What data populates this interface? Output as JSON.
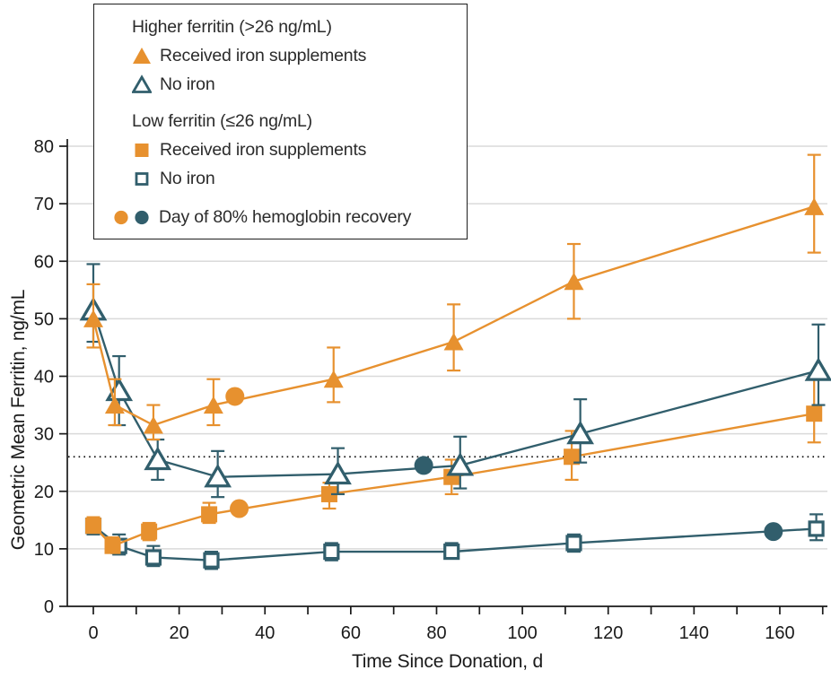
{
  "figure": {
    "xlabel": "Time Since Donation, d",
    "ylabel": "Geometric Mean Ferritin, ng/mL"
  },
  "colors": {
    "orange": "#E7912F",
    "teal": "#315E6C",
    "grid": "#DADADA",
    "axis": "#1A1A1A",
    "text": "#2B2B2B",
    "background": "#FFFFFF"
  },
  "legend": {
    "groups": [
      {
        "title": "Higher ferritin (>26 ng/mL)",
        "items": [
          {
            "marker": "triangle-filled-orange",
            "label": "Received iron supplements"
          },
          {
            "marker": "triangle-open-teal",
            "label": "No iron"
          }
        ]
      },
      {
        "title": "Low ferritin (≤26 ng/mL)",
        "items": [
          {
            "marker": "square-filled-orange",
            "label": "Received iron supplements"
          },
          {
            "marker": "square-open-teal",
            "label": "No iron"
          }
        ]
      }
    ],
    "recovery": {
      "markers": [
        "circle-orange",
        "circle-teal"
      ],
      "label": "Day of 80% hemoglobin recovery"
    }
  },
  "chart_data": {
    "type": "line",
    "title": "",
    "xlabel": "Time Since Donation, d",
    "ylabel": "Geometric Mean Ferritin, ng/mL",
    "xlim": [
      -6,
      172
    ],
    "ylim": [
      0,
      80
    ],
    "x_tick_labels": [
      0,
      20,
      40,
      60,
      80,
      100,
      120,
      140,
      160
    ],
    "x_minor_tick_step": 10,
    "x_minor_tick_max": 170,
    "y_ticks": [
      0,
      10,
      20,
      30,
      40,
      50,
      60,
      70,
      80
    ],
    "grid": "horizontal",
    "legend_position": "top-left",
    "threshold_line": {
      "y": 26,
      "style": "dotted"
    },
    "series": [
      {
        "name": "Low ferritin (≤26 ng/mL) — No iron",
        "key": "low-noiron",
        "marker": "square-open",
        "color": "teal",
        "x": [
          0,
          6,
          14,
          27.5,
          55.5,
          83.5,
          112,
          168.5
        ],
        "y": [
          14,
          10.5,
          8.5,
          8,
          9.5,
          9.5,
          11,
          13.5
        ],
        "ci_low": [
          12.5,
          9,
          7,
          6.5,
          8,
          8.5,
          9.5,
          11.5
        ],
        "ci_high": [
          15.5,
          12.5,
          10.5,
          9.5,
          11,
          11,
          12.5,
          16
        ]
      },
      {
        "name": "Low ferritin (≤26 ng/mL) — Received iron supplements",
        "key": "low-iron",
        "marker": "square-filled",
        "color": "orange",
        "x": [
          0,
          4.5,
          13,
          27,
          55,
          83.5,
          111.5,
          168
        ],
        "y": [
          14,
          10.5,
          13,
          16,
          19.5,
          22.5,
          26,
          33.5
        ],
        "ci_low": [
          13,
          9.5,
          11.5,
          14.5,
          17,
          19.5,
          22,
          28.5
        ],
        "ci_high": [
          15.5,
          12,
          14.5,
          18,
          21.5,
          25.5,
          30.5,
          39.5
        ]
      },
      {
        "name": "Higher ferritin (>26 ng/mL) — No iron",
        "key": "higher-noiron",
        "marker": "triangle-open",
        "color": "teal",
        "x": [
          0,
          6,
          15,
          29,
          57,
          85.5,
          113.5,
          169
        ],
        "y": [
          51.5,
          37.5,
          25.5,
          22.5,
          23,
          24.5,
          30,
          41
        ],
        "ci_low": [
          46,
          31.5,
          22,
          19,
          19.5,
          20.5,
          25,
          35
        ],
        "ci_high": [
          59.5,
          43.5,
          29,
          27,
          27.5,
          29.5,
          36,
          49
        ]
      },
      {
        "name": "Higher ferritin (>26 ng/mL) — Received iron supplements",
        "key": "higher-iron",
        "marker": "triangle-filled",
        "color": "orange",
        "x": [
          0,
          5,
          14,
          28,
          56,
          84,
          112,
          168
        ],
        "y": [
          50,
          35,
          31.5,
          35,
          39.5,
          46,
          56.5,
          69.5
        ],
        "ci_low": [
          45,
          31.5,
          29,
          31.5,
          35.5,
          41,
          50,
          61.5
        ],
        "ci_high": [
          56,
          39.5,
          35,
          39.5,
          45,
          52.5,
          63,
          78.5
        ]
      }
    ],
    "recovery_points": [
      {
        "series": "higher-iron",
        "x": 33,
        "y": 36.5,
        "color": "orange"
      },
      {
        "series": "low-iron",
        "x": 34,
        "y": 17,
        "color": "orange"
      },
      {
        "series": "higher-noiron",
        "x": 77,
        "y": 24.5,
        "color": "teal"
      },
      {
        "series": "low-noiron",
        "x": 158.5,
        "y": 13,
        "color": "teal"
      }
    ]
  }
}
